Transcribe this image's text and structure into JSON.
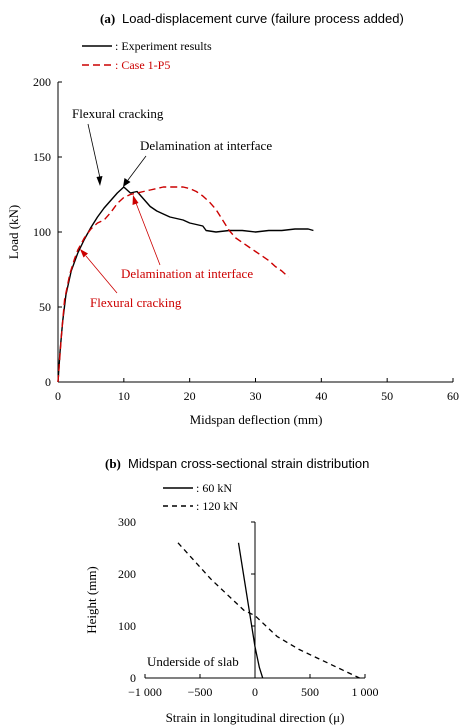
{
  "chart_data": [
    {
      "type": "line",
      "panel": "(a)",
      "title": "Load-displacement curve (failure process added)",
      "xlabel": "Midspan deflection  (mm)",
      "ylabel": "Load  (kN)",
      "xlim": [
        0,
        60
      ],
      "ylim": [
        0,
        200
      ],
      "xticks": [
        0,
        10,
        20,
        30,
        40,
        50,
        60
      ],
      "yticks": [
        0,
        50,
        100,
        150,
        200
      ],
      "grid": false,
      "legend_position": "top-left",
      "series": [
        {
          "name": ": Experiment results",
          "style": "solid",
          "color": "#000000",
          "points": [
            [
              0,
              0
            ],
            [
              0.3,
              20
            ],
            [
              0.7,
              40
            ],
            [
              1.2,
              58
            ],
            [
              2,
              74
            ],
            [
              3,
              86
            ],
            [
              4,
              95
            ],
            [
              5,
              103
            ],
            [
              6,
              110
            ],
            [
              7,
              116
            ],
            [
              8,
              121
            ],
            [
              9,
              126
            ],
            [
              10,
              130
            ],
            [
              11,
              126
            ],
            [
              12,
              127
            ],
            [
              13,
              122
            ],
            [
              14,
              117
            ],
            [
              15,
              114
            ],
            [
              16,
              112
            ],
            [
              17,
              110
            ],
            [
              18,
              109
            ],
            [
              19,
              108
            ],
            [
              20,
              106
            ],
            [
              21,
              105
            ],
            [
              22,
              104
            ],
            [
              22.5,
              101
            ],
            [
              24,
              100
            ],
            [
              26,
              101
            ],
            [
              28,
              101
            ],
            [
              30,
              100
            ],
            [
              32,
              101
            ],
            [
              34,
              101
            ],
            [
              36,
              102
            ],
            [
              38,
              102
            ],
            [
              38.8,
              101
            ]
          ]
        },
        {
          "name": ": Case 1-P5",
          "style": "dashed",
          "color": "#cc0000",
          "points": [
            [
              0,
              0
            ],
            [
              0.5,
              30
            ],
            [
              1,
              55
            ],
            [
              1.8,
              72
            ],
            [
              2.5,
              82
            ],
            [
              3,
              88
            ],
            [
              4,
              96
            ],
            [
              5,
              102
            ],
            [
              6,
              106
            ],
            [
              7,
              108
            ],
            [
              8,
              113
            ],
            [
              9,
              119
            ],
            [
              10,
              123
            ],
            [
              11,
              125
            ],
            [
              12,
              126
            ],
            [
              13,
              127
            ],
            [
              14,
              128
            ],
            [
              15,
              129
            ],
            [
              16,
              130
            ],
            [
              17,
              130
            ],
            [
              18,
              130
            ],
            [
              19,
              130
            ],
            [
              20,
              129
            ],
            [
              21,
              127
            ],
            [
              22,
              124
            ],
            [
              23,
              120
            ],
            [
              24,
              115
            ],
            [
              25,
              108
            ],
            [
              26,
              101
            ],
            [
              27,
              96
            ],
            [
              28,
              93
            ],
            [
              29,
              90
            ],
            [
              30,
              87
            ],
            [
              31,
              84
            ],
            [
              32,
              81
            ],
            [
              33,
              77
            ],
            [
              34,
              74
            ],
            [
              35,
              70
            ]
          ]
        }
      ],
      "annotations": [
        {
          "text": "Flexural cracking",
          "color": "#000000",
          "target": [
            6.5,
            115
          ]
        },
        {
          "text": "Delamination at interface",
          "color": "#000000",
          "target": [
            10,
            129
          ]
        },
        {
          "text": "Delamination at interface",
          "color": "#cc0000",
          "target": [
            12,
            126
          ]
        },
        {
          "text": "Flexural cracking",
          "color": "#cc0000",
          "target": [
            3.5,
            93
          ]
        }
      ]
    },
    {
      "type": "line",
      "panel": "(b)",
      "title": "Midspan cross-sectional strain distribution",
      "xlabel": "Strain in longitudinal direction  (μ)",
      "ylabel": "Height  (mm)",
      "xlim": [
        -1000,
        1000
      ],
      "ylim": [
        0,
        300
      ],
      "xticks": [
        -1000,
        -500,
        0,
        500,
        1000
      ],
      "xtick_labels": [
        "−1 000",
        "−500",
        "0",
        "500",
        "1 000"
      ],
      "yticks": [
        0,
        100,
        200,
        300
      ],
      "grid": false,
      "legend_position": "top-left",
      "series": [
        {
          "name": ": 60 kN",
          "style": "solid",
          "color": "#000000",
          "points": [
            [
              -150,
              260
            ],
            [
              -120,
              220
            ],
            [
              -90,
              180
            ],
            [
              -60,
              140
            ],
            [
              -30,
              100
            ],
            [
              0,
              60
            ],
            [
              40,
              20
            ],
            [
              70,
              0
            ]
          ]
        },
        {
          "name": ": 120 kN",
          "style": "dashed",
          "color": "#000000",
          "points": [
            [
              -700,
              260
            ],
            [
              -550,
              225
            ],
            [
              -400,
              190
            ],
            [
              -250,
              160
            ],
            [
              -100,
              130
            ],
            [
              0,
              120
            ],
            [
              100,
              100
            ],
            [
              200,
              80
            ],
            [
              400,
              55
            ],
            [
              600,
              35
            ],
            [
              800,
              15
            ],
            [
              950,
              0
            ]
          ]
        }
      ],
      "annotations": [
        {
          "text": "Underside of slab"
        }
      ]
    }
  ]
}
